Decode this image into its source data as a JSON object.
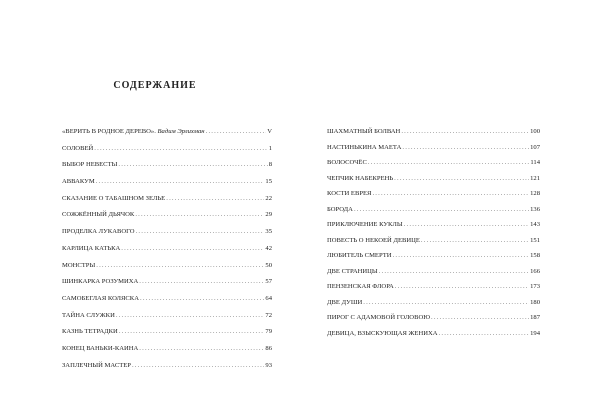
{
  "title": "СОДЕРЖАНИЕ",
  "left": [
    {
      "label": "«ВЕРИТЬ В РОДНОЕ ДЕРЕВО».",
      "author": "Вадим Эрлихман",
      "page": "V"
    },
    {
      "label": "СОЛОВЕЙ",
      "page": "1"
    },
    {
      "label": "ВЫБОР НЕВЕСТЫ",
      "page": "8"
    },
    {
      "label": "АВВАКУМ",
      "page": "15"
    },
    {
      "label": "СКАЗАНИЕ О ТАБАШНОМ ЗЕЛЬЕ",
      "page": "22"
    },
    {
      "label": "СОЖЖЁННЫЙ ДЬЯЧОК",
      "page": "29"
    },
    {
      "label": "ПРОДЕЛКА ЛУКАВОГО",
      "page": "35"
    },
    {
      "label": "КАРЛИЦА КАТЬКА",
      "page": "42"
    },
    {
      "label": "МОНСТРЫ",
      "page": "50"
    },
    {
      "label": "ШИНКАРКА РОЗУМИХА",
      "page": "57"
    },
    {
      "label": "САМОБЕГЛАЯ КОЛЯСКА",
      "page": "64"
    },
    {
      "label": "ТАЙНА СЛУЖКИ",
      "page": "72"
    },
    {
      "label": "КАЗНЬ ТЕТРАДКИ",
      "page": "79"
    },
    {
      "label": "КОНЕЦ ВАНЬКИ-КАИНА",
      "page": "86"
    },
    {
      "label": "ЗАПЛЕЧНЫЙ МАСТЕР",
      "page": "93"
    }
  ],
  "right": [
    {
      "label": "ШАХМАТНЫЙ БОЛВАН",
      "page": "100"
    },
    {
      "label": "НАСТИНЬКИНА МАЕТА",
      "page": "107"
    },
    {
      "label": "ВОЛОСОЧЁС",
      "page": "114"
    },
    {
      "label": "ЧЕПЧИК НАБЕКРЕНЬ",
      "page": "121"
    },
    {
      "label": "КОСТИ ЕВРЕЯ",
      "page": "128"
    },
    {
      "label": "БОРОДА",
      "page": "136"
    },
    {
      "label": "ПРИКЛЮЧЕНИЕ КУКЛЫ",
      "page": "143"
    },
    {
      "label": "ПОВЕСТЬ О НЕКОЕЙ ДЕВИЦЕ",
      "page": "151"
    },
    {
      "label": "ЛЮБИТЕЛЬ СМЕРТИ",
      "page": "158"
    },
    {
      "label": "ДВЕ СТРАНИЦЫ",
      "page": "166"
    },
    {
      "label": "ПЕНЗЕНСКАЯ ФЛОРА",
      "page": "173"
    },
    {
      "label": "ДВЕ ДУШИ",
      "page": "180"
    },
    {
      "label": "ПИРОГ С АДАМОВОЙ ГОЛОВОЮ",
      "page": "187"
    },
    {
      "label": "ДЕВИЦА, ВЗЫСКУЮЩАЯ ЖЕНИХА",
      "page": "194"
    }
  ]
}
